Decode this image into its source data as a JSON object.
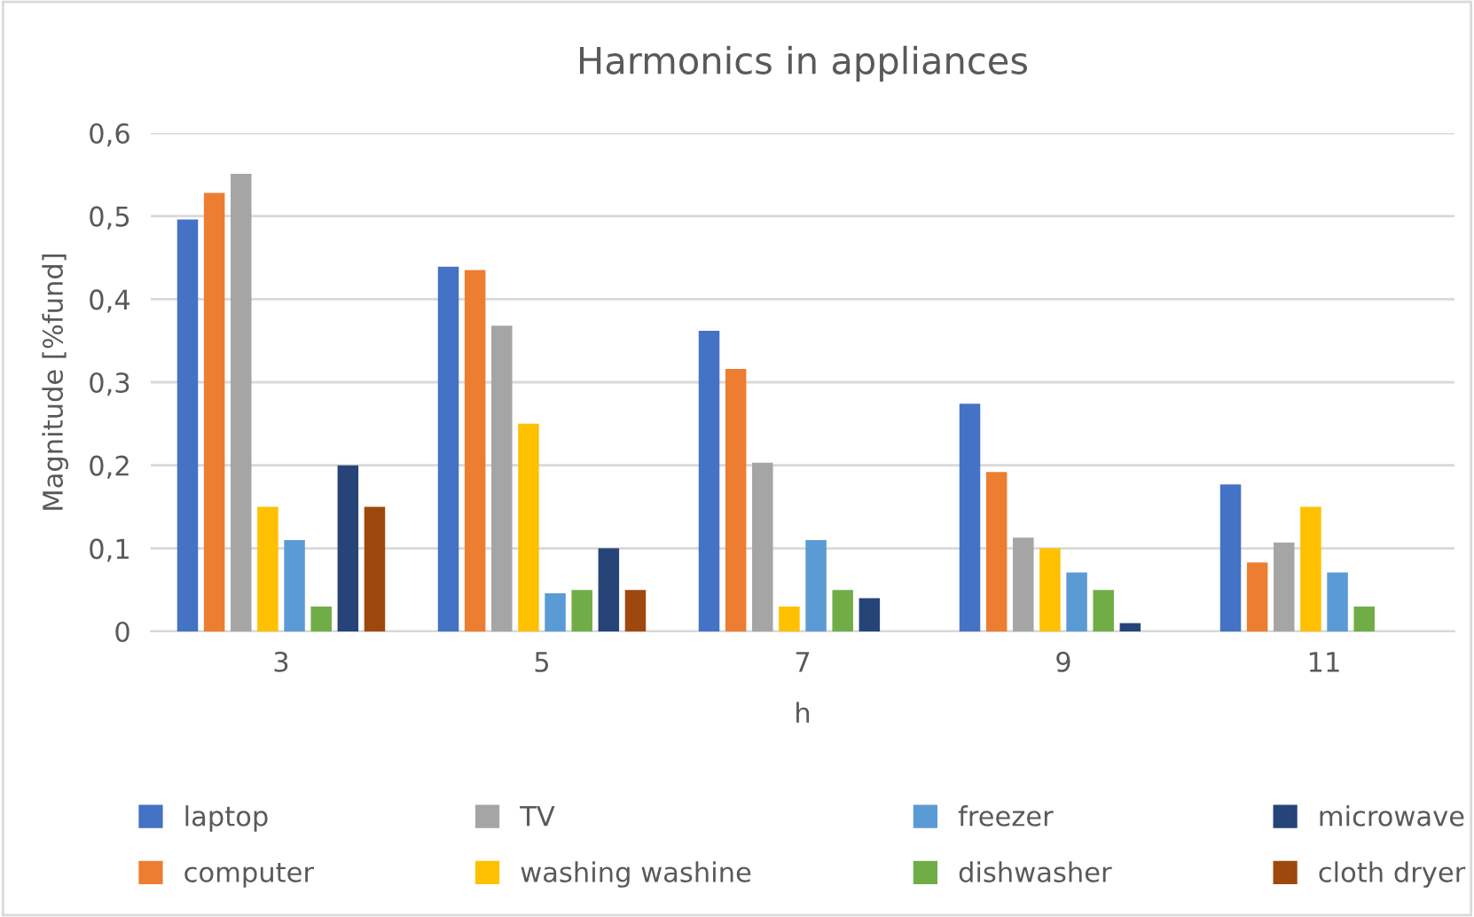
{
  "chart_data": {
    "type": "bar",
    "title": "Harmonics in appliances",
    "xlabel": "h",
    "ylabel": "Magnitude [%fund]",
    "categories": [
      "3",
      "5",
      "7",
      "9",
      "11"
    ],
    "series": [
      {
        "name": "laptop",
        "color": "#4472c4",
        "values": [
          0.496,
          0.439,
          0.362,
          0.274,
          0.177
        ]
      },
      {
        "name": "computer",
        "color": "#ed7d31",
        "values": [
          0.528,
          0.435,
          0.316,
          0.192,
          0.083
        ]
      },
      {
        "name": "TV",
        "color": "#a5a5a5",
        "values": [
          0.551,
          0.368,
          0.203,
          0.113,
          0.107
        ]
      },
      {
        "name": "washing washine",
        "color": "#ffc000",
        "values": [
          0.15,
          0.25,
          0.03,
          0.1,
          0.15
        ]
      },
      {
        "name": "freezer",
        "color": "#5b9bd5",
        "values": [
          0.11,
          0.046,
          0.11,
          0.071,
          0.071
        ]
      },
      {
        "name": "dishwasher",
        "color": "#70ad47",
        "values": [
          0.03,
          0.05,
          0.05,
          0.05,
          0.03
        ]
      },
      {
        "name": "microwave",
        "color": "#264478",
        "values": [
          0.2,
          0.1,
          0.04,
          0.01,
          null
        ]
      },
      {
        "name": "cloth dryer",
        "color": "#9e480e",
        "values": [
          0.15,
          0.05,
          null,
          null,
          null
        ]
      }
    ],
    "ylim": [
      0,
      0.6
    ],
    "yticks": [
      0,
      {
        "value": 0.1,
        "label": "0,1"
      },
      {
        "value": 0.2,
        "label": "0,2"
      },
      {
        "value": 0.3,
        "label": "0,3"
      },
      {
        "value": 0.4,
        "label": "0,4"
      },
      {
        "value": 0.5,
        "label": "0,5"
      },
      {
        "value": 0.6,
        "label": "0,6"
      }
    ],
    "grid": "y",
    "legend": "bottom"
  }
}
